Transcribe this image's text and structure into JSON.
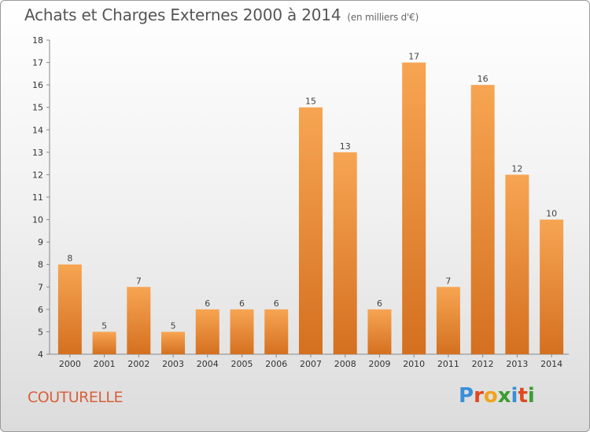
{
  "header": {
    "title": "Achats et Charges Externes 2000 à 2014",
    "subtitle": "(en milliers d'€)"
  },
  "commune": "COUTURELLE",
  "brand": {
    "text": "Proxiti",
    "colors": [
      "#3a8fd8",
      "#e0481f",
      "#f2a31b",
      "#3a9d2f",
      "#3a8fd8",
      "#e0481f",
      "#3a9d2f"
    ]
  },
  "chart_data": {
    "type": "bar",
    "title": "Achats et Charges Externes 2000 à 2014",
    "subtitle": "(en milliers d'€)",
    "categories": [
      "2000",
      "2001",
      "2002",
      "2003",
      "2004",
      "2005",
      "2006",
      "2007",
      "2008",
      "2009",
      "2010",
      "2011",
      "2012",
      "2013",
      "2014"
    ],
    "values": [
      8,
      5,
      7,
      5,
      6,
      6,
      6,
      15,
      13,
      6,
      17,
      7,
      16,
      12,
      10
    ],
    "ylim": [
      4,
      18
    ],
    "yticks": [
      4,
      5,
      6,
      7,
      8,
      9,
      10,
      11,
      12,
      13,
      14,
      15,
      16,
      17,
      18
    ],
    "grid": false,
    "bar_color_light": "#f7a552",
    "bar_color_dark": "#d47020"
  }
}
